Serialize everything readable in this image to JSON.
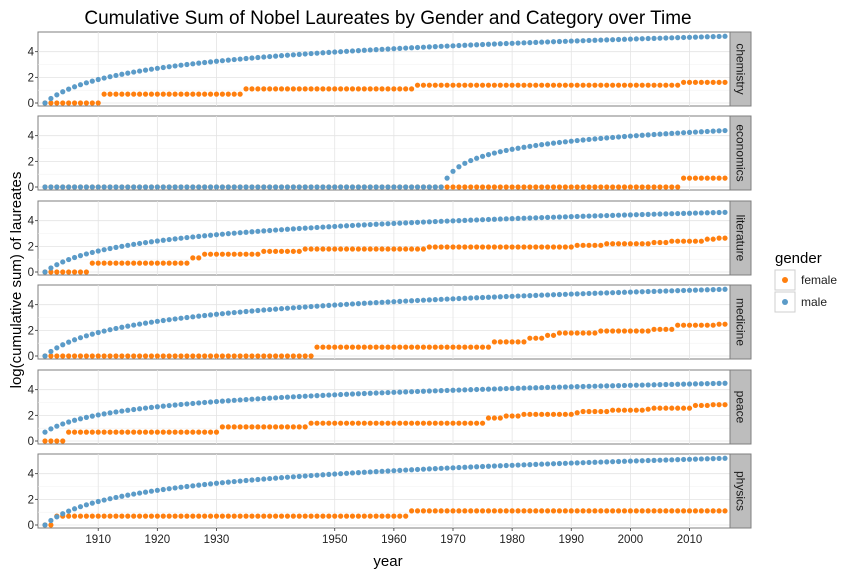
{
  "chart_data": {
    "type": "scatter",
    "title": "Cumulative Sum of Nobel Laureates by Gender and Category over Time",
    "xlabel": "year",
    "ylabel": "log(cumulative sum) of laureates",
    "x_range": [
      1901,
      2016
    ],
    "x_ticks": [
      1910,
      1920,
      1930,
      1950,
      1960,
      1970,
      1980,
      1990,
      2000,
      2010
    ],
    "y_range": [
      0,
      5.3
    ],
    "y_ticks": [
      0,
      2,
      4
    ],
    "legend": {
      "title": "gender",
      "placement": "right",
      "entries": [
        {
          "label": "female",
          "color": "#ff7f0e"
        },
        {
          "label": "male",
          "color": "#5b9bc8"
        }
      ]
    },
    "grid": true,
    "facets": [
      {
        "category": "chemistry",
        "male": {
          "start_year": 1901,
          "end_year": 2016,
          "start_value": 0,
          "end_value": 5.2
        },
        "female_steps": [
          [
            1901,
            0
          ],
          [
            1911,
            0.69
          ],
          [
            1935,
            1.1
          ],
          [
            1964,
            1.39
          ],
          [
            2009,
            1.61
          ]
        ]
      },
      {
        "category": "economics",
        "male": {
          "start_year": 1969,
          "end_year": 2016,
          "start_value": 0.69,
          "end_value": 4.4,
          "zero_from": 1901
        },
        "female_steps": [
          [
            1901,
            0
          ],
          [
            2009,
            0.69
          ]
        ]
      },
      {
        "category": "literature",
        "male": {
          "start_year": 1901,
          "end_year": 2016,
          "start_value": 0,
          "end_value": 4.65
        },
        "female_steps": [
          [
            1901,
            0
          ],
          [
            1909,
            0.69
          ],
          [
            1926,
            1.1
          ],
          [
            1928,
            1.39
          ],
          [
            1938,
            1.61
          ],
          [
            1945,
            1.79
          ],
          [
            1966,
            1.95
          ],
          [
            1991,
            2.08
          ],
          [
            1996,
            2.2
          ],
          [
            2004,
            2.3
          ],
          [
            2007,
            2.4
          ],
          [
            2013,
            2.56
          ],
          [
            2015,
            2.64
          ]
        ]
      },
      {
        "category": "medicine",
        "male": {
          "start_year": 1901,
          "end_year": 2016,
          "start_value": 0,
          "end_value": 5.2
        },
        "female_steps": [
          [
            1901,
            0
          ],
          [
            1947,
            0.69
          ],
          [
            1977,
            1.1
          ],
          [
            1983,
            1.39
          ],
          [
            1986,
            1.61
          ],
          [
            1988,
            1.79
          ],
          [
            1995,
            1.95
          ],
          [
            2004,
            2.08
          ],
          [
            2008,
            2.4
          ],
          [
            2015,
            2.48
          ]
        ]
      },
      {
        "category": "peace",
        "male": {
          "start_year": 1901,
          "end_year": 2016,
          "start_value": 0.69,
          "end_value": 4.5
        },
        "female_steps": [
          [
            1901,
            0
          ],
          [
            1905,
            0.69
          ],
          [
            1931,
            1.1
          ],
          [
            1946,
            1.39
          ],
          [
            1976,
            1.79
          ],
          [
            1979,
            1.95
          ],
          [
            1982,
            2.08
          ],
          [
            1991,
            2.2
          ],
          [
            1992,
            2.3
          ],
          [
            1997,
            2.4
          ],
          [
            2003,
            2.48
          ],
          [
            2004,
            2.56
          ],
          [
            2011,
            2.77
          ],
          [
            2014,
            2.83
          ]
        ]
      },
      {
        "category": "physics",
        "male": {
          "start_year": 1901,
          "end_year": 2016,
          "start_value": 0,
          "end_value": 5.2
        },
        "female_steps": [
          [
            1901,
            0
          ],
          [
            1903,
            0.69
          ],
          [
            1963,
            1.1
          ]
        ]
      }
    ]
  }
}
